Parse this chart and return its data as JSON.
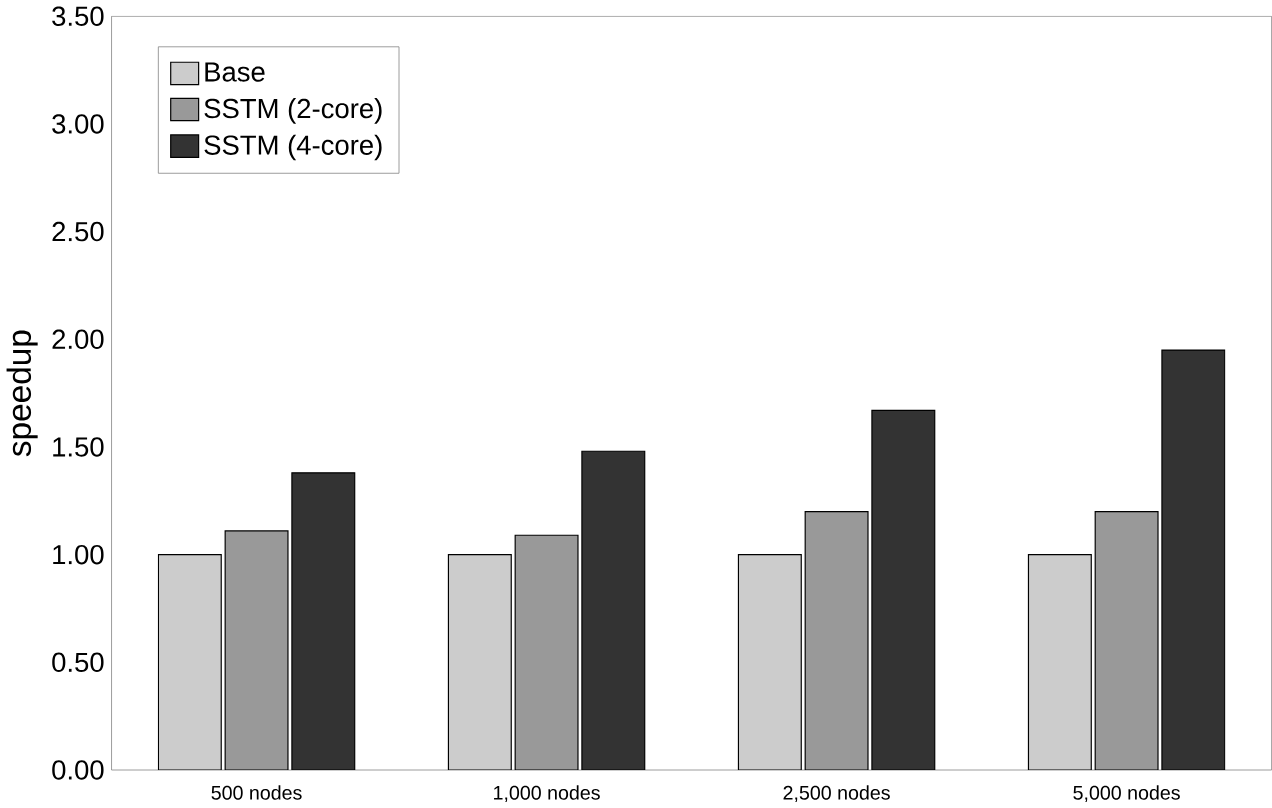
{
  "chart_data": {
    "type": "bar",
    "ylabel": "speedup",
    "categories": [
      "500 nodes",
      "1,000 nodes",
      "2,500 nodes",
      "5,000 nodes"
    ],
    "series": [
      {
        "name": "Base",
        "color": "#cccccc",
        "values": [
          1.0,
          1.0,
          1.0,
          1.0
        ]
      },
      {
        "name": "SSTM (2-core)",
        "color": "#999999",
        "values": [
          1.11,
          1.09,
          1.2,
          1.2
        ]
      },
      {
        "name": "SSTM (4-core)",
        "color": "#333333",
        "values": [
          1.38,
          1.48,
          1.67,
          1.95
        ]
      }
    ],
    "ylim": [
      0,
      3.5
    ],
    "yticks": [
      {
        "value": 0,
        "label": "0.00"
      },
      {
        "value": 0.5,
        "label": "0.50"
      },
      {
        "value": 1,
        "label": "1.00"
      },
      {
        "value": 1.5,
        "label": "1.50"
      },
      {
        "value": 2,
        "label": "2.00"
      },
      {
        "value": 2.5,
        "label": "2.50"
      },
      {
        "value": 3,
        "label": "3.00"
      },
      {
        "value": 3.5,
        "label": "3.50"
      }
    ],
    "grid": false,
    "legend": "top left"
  }
}
